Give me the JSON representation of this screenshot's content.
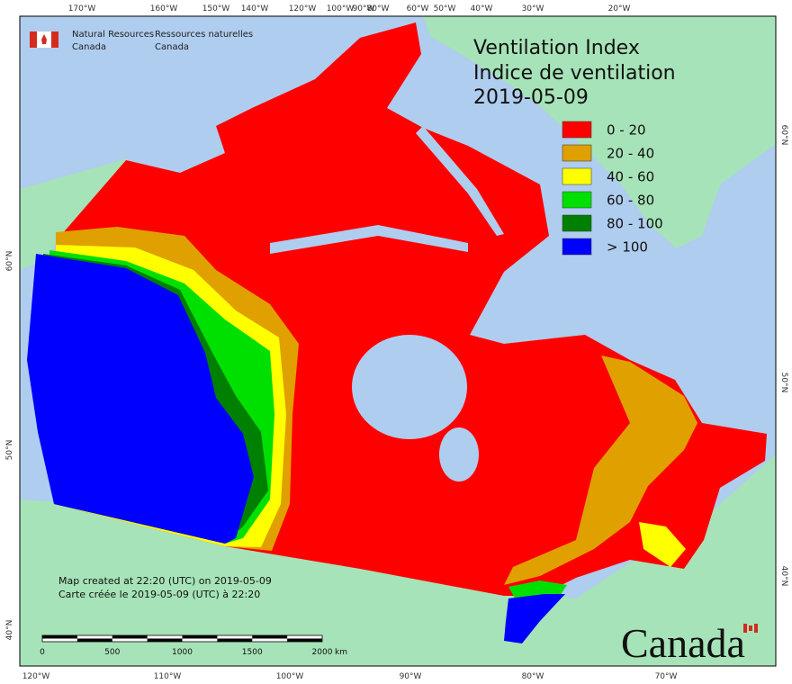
{
  "header": {
    "agency_en": [
      "Natural Resources",
      "Canada"
    ],
    "agency_fr": [
      "Ressources naturelles",
      "Canada"
    ]
  },
  "title": [
    "Ventilation Index",
    "Indice de ventilation",
    "2019-05-09"
  ],
  "legend": [
    {
      "label": "0 - 20",
      "color": "#ff0000"
    },
    {
      "label": "20 - 40",
      "color": "#e0a000"
    },
    {
      "label": "40 - 60",
      "color": "#ffff00"
    },
    {
      "label": "60 - 80",
      "color": "#00e000"
    },
    {
      "label": "80 - 100",
      "color": "#008000"
    },
    {
      "label": "> 100",
      "color": "#0000ff"
    }
  ],
  "graticule": {
    "top": [
      "170°W",
      "160°W",
      "150°W",
      "140°W",
      "120°W",
      "100°W",
      "90°W",
      "80°W",
      "60°W",
      "50°W",
      "40°W",
      "30°W",
      "20°W"
    ],
    "bottom": [
      "120°W",
      "110°W",
      "100°W",
      "90°W",
      "80°W",
      "70°W"
    ],
    "left": [
      "60°N",
      "50°N",
      "40°N"
    ],
    "right": [
      "60°N",
      "50°N",
      "40°N"
    ]
  },
  "notes": [
    "Map created at 22:20 (UTC) on 2019-05-09",
    "Carte créée le 2019-05-09 (UTC) à 22:20"
  ],
  "scale_bar": {
    "labels": [
      "0",
      "500",
      "1000",
      "1500",
      "2000"
    ],
    "unit": "km"
  },
  "wordmark": "Canada"
}
